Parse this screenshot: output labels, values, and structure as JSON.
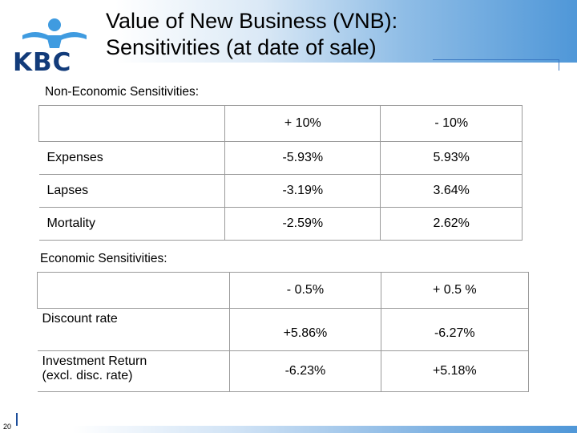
{
  "title": {
    "line1": "Value of New Business (VNB):",
    "line2": "Sensitivities (at date of sale)"
  },
  "logo": {
    "text": "KBC",
    "icon": "kbc-figure-logo-icon",
    "color": "#123b7a"
  },
  "non_economic": {
    "label": "Non-Economic Sensitivities:",
    "headers": [
      "",
      "+ 10%",
      "- 10%"
    ],
    "rows": [
      [
        "Expenses",
        "-5.93%",
        "5.93%"
      ],
      [
        "Lapses",
        "-3.19%",
        "3.64%"
      ],
      [
        "Mortality",
        "-2.59%",
        "2.62%"
      ]
    ]
  },
  "economic": {
    "label": "Economic Sensitivities:",
    "headers": [
      "",
      "-  0.5%",
      "+ 0.5 %"
    ],
    "rows": [
      {
        "label_line1": "Discount rate",
        "label_line2": "",
        "v1": "+5.86%",
        "v2": "-6.27%"
      },
      {
        "label_line1": "Investment Return",
        "label_line2": "(excl. disc. rate)",
        "v1": "-6.23%",
        "v2": "+5.18%"
      }
    ]
  },
  "page_number": "20",
  "colors": {
    "accent_blue": "#4f97d8",
    "rule_blue": "#3a78c2"
  }
}
